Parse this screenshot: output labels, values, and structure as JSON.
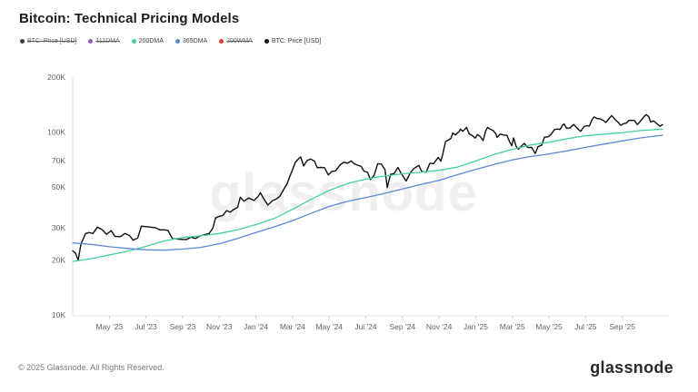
{
  "header": {
    "title": "Bitcoin: Technical Pricing Models"
  },
  "legend": {
    "items": [
      {
        "label": "BTC: Price [USD]",
        "color": "#3c3c3e",
        "disabled": true
      },
      {
        "label": "111DMA",
        "color": "#9b59d0",
        "disabled": true
      },
      {
        "label": "200DMA",
        "color": "#43cfa2",
        "disabled": false
      },
      {
        "label": "365DMA",
        "color": "#5d87d8",
        "disabled": false
      },
      {
        "label": "200WMA",
        "color": "#e03c3c",
        "disabled": true
      },
      {
        "label": "BTC: Price [USD]",
        "color": "#111111",
        "disabled": false
      }
    ]
  },
  "watermark": "glassnode",
  "footer": {
    "copyright": "© 2025 Glassnode. All Rights Reserved.",
    "brand": "glassnode"
  },
  "chart_data": {
    "type": "line",
    "title": "Bitcoin: Technical Pricing Models",
    "y_scale": "log",
    "value_unit": "USD thousands",
    "ylim": [
      10,
      200
    ],
    "y_ticks": [
      {
        "label": "200K",
        "value": 200
      },
      {
        "label": "100K",
        "value": 100
      },
      {
        "label": "70K",
        "value": 70
      },
      {
        "label": "50K",
        "value": 50
      },
      {
        "label": "30K",
        "value": 30
      },
      {
        "label": "20K",
        "value": 20
      },
      {
        "label": "10K",
        "value": 10
      }
    ],
    "x_domain": [
      0,
      32.2
    ],
    "x_epoch": "t = months since Mar 2023",
    "x_ticks": [
      {
        "label": "May '23",
        "t": 2
      },
      {
        "label": "Jul '23",
        "t": 4
      },
      {
        "label": "Sep '23",
        "t": 6
      },
      {
        "label": "Nov '23",
        "t": 8
      },
      {
        "label": "Jan '24",
        "t": 10
      },
      {
        "label": "Mar '24",
        "t": 12
      },
      {
        "label": "May '24",
        "t": 14
      },
      {
        "label": "Jul '24",
        "t": 16
      },
      {
        "label": "Sep '24",
        "t": 18
      },
      {
        "label": "Nov '24",
        "t": 20
      },
      {
        "label": "Jan '25",
        "t": 22
      },
      {
        "label": "Mar '25",
        "t": 24
      },
      {
        "label": "May '25",
        "t": 26
      },
      {
        "label": "Jul '25",
        "t": 28
      },
      {
        "label": "Sep '25",
        "t": 30
      }
    ],
    "series": [
      {
        "name": "BTC: Price [USD]",
        "color": "#101010",
        "width": 1.4,
        "points": [
          [
            0,
            22.4
          ],
          [
            0.15,
            21.8
          ],
          [
            0.3,
            19.9
          ],
          [
            0.45,
            24.4
          ],
          [
            0.7,
            27.9
          ],
          [
            0.9,
            28.2
          ],
          [
            1.1,
            27.9
          ],
          [
            1.35,
            30.2
          ],
          [
            1.6,
            29.3
          ],
          [
            1.85,
            27.6
          ],
          [
            2.1,
            28.9
          ],
          [
            2.3,
            26.9
          ],
          [
            2.6,
            26.8
          ],
          [
            2.85,
            27.9
          ],
          [
            3.1,
            27.2
          ],
          [
            3.3,
            25.6
          ],
          [
            3.55,
            26.4
          ],
          [
            3.75,
            30.6
          ],
          [
            4,
            30.4
          ],
          [
            4.25,
            30.2
          ],
          [
            4.5,
            30.0
          ],
          [
            4.75,
            29.2
          ],
          [
            5,
            29.2
          ],
          [
            5.2,
            29.0
          ],
          [
            5.45,
            26.1
          ],
          [
            5.7,
            26.0
          ],
          [
            5.95,
            25.9
          ],
          [
            6.2,
            25.8
          ],
          [
            6.45,
            26.6
          ],
          [
            6.7,
            26.2
          ],
          [
            6.95,
            27.0
          ],
          [
            7.2,
            27.5
          ],
          [
            7.45,
            27.9
          ],
          [
            7.65,
            29.9
          ],
          [
            7.8,
            33.9
          ],
          [
            8,
            34.6
          ],
          [
            8.2,
            35.0
          ],
          [
            8.4,
            37.2
          ],
          [
            8.6,
            36.5
          ],
          [
            8.8,
            37.8
          ],
          [
            9,
            38.7
          ],
          [
            9.15,
            44.0
          ],
          [
            9.35,
            41.9
          ],
          [
            9.6,
            43.6
          ],
          [
            9.9,
            42.3
          ],
          [
            10.1,
            44.2
          ],
          [
            10.25,
            46.6
          ],
          [
            10.45,
            42.8
          ],
          [
            10.65,
            39.9
          ],
          [
            10.9,
            42.1
          ],
          [
            11.1,
            43.0
          ],
          [
            11.3,
            44.5
          ],
          [
            11.5,
            48.2
          ],
          [
            11.7,
            52.0
          ],
          [
            11.85,
            57.1
          ],
          [
            12,
            62.4
          ],
          [
            12.15,
            68.3
          ],
          [
            12.35,
            71.8
          ],
          [
            12.45,
            73.1
          ],
          [
            12.6,
            65.3
          ],
          [
            12.8,
            70.0
          ],
          [
            13,
            71.2
          ],
          [
            13.2,
            69.4
          ],
          [
            13.35,
            63.9
          ],
          [
            13.55,
            64.1
          ],
          [
            13.75,
            63.9
          ],
          [
            13.95,
            58.3
          ],
          [
            14.15,
            61.0
          ],
          [
            14.35,
            61.4
          ],
          [
            14.6,
            66.2
          ],
          [
            14.8,
            68.5
          ],
          [
            15,
            67.6
          ],
          [
            15.2,
            69.5
          ],
          [
            15.35,
            67.3
          ],
          [
            15.55,
            66.0
          ],
          [
            15.75,
            64.9
          ],
          [
            15.9,
            61.2
          ],
          [
            16.1,
            60.2
          ],
          [
            16.25,
            55.0
          ],
          [
            16.45,
            58.0
          ],
          [
            16.65,
            67.2
          ],
          [
            16.85,
            66.9
          ],
          [
            17.05,
            62.3
          ],
          [
            17.17,
            49.8
          ],
          [
            17.35,
            58.7
          ],
          [
            17.55,
            59.4
          ],
          [
            17.75,
            64.1
          ],
          [
            17.95,
            59.0
          ],
          [
            18.2,
            54.0
          ],
          [
            18.45,
            60.4
          ],
          [
            18.65,
            63.5
          ],
          [
            18.9,
            65.7
          ],
          [
            19.05,
            60.8
          ],
          [
            19.3,
            60.4
          ],
          [
            19.5,
            67.6
          ],
          [
            19.7,
            67.3
          ],
          [
            19.95,
            72.7
          ],
          [
            20.1,
            69.4
          ],
          [
            20.2,
            75.6
          ],
          [
            20.35,
            88.7
          ],
          [
            20.5,
            90.6
          ],
          [
            20.65,
            92.5
          ],
          [
            20.75,
            99.0
          ],
          [
            20.9,
            96.4
          ],
          [
            21.1,
            101.0
          ],
          [
            21.17,
            103.9
          ],
          [
            21.3,
            101.1
          ],
          [
            21.5,
            106.1
          ],
          [
            21.65,
            97.5
          ],
          [
            21.85,
            95.2
          ],
          [
            21.97,
            92.7
          ],
          [
            22.1,
            97.0
          ],
          [
            22.25,
            94.5
          ],
          [
            22.4,
            89.8
          ],
          [
            22.55,
            102.0
          ],
          [
            22.65,
            106.2
          ],
          [
            22.8,
            103.7
          ],
          [
            22.95,
            102.1
          ],
          [
            23.1,
            97.8
          ],
          [
            23.17,
            93.6
          ],
          [
            23.35,
            97.5
          ],
          [
            23.55,
            96.3
          ],
          [
            23.7,
            96.1
          ],
          [
            23.85,
            88.6
          ],
          [
            23.97,
            84.3
          ],
          [
            24.07,
            93.0
          ],
          [
            24.2,
            83.9
          ],
          [
            24.33,
            80.7
          ],
          [
            24.5,
            84.0
          ],
          [
            24.65,
            86.8
          ],
          [
            24.85,
            82.4
          ],
          [
            25.05,
            82.5
          ],
          [
            25.25,
            76.4
          ],
          [
            25.4,
            83.2
          ],
          [
            25.6,
            84.8
          ],
          [
            25.75,
            93.8
          ],
          [
            25.95,
            94.3
          ],
          [
            26.1,
            97.0
          ],
          [
            26.3,
            103.3
          ],
          [
            26.45,
            104.0
          ],
          [
            26.6,
            103.4
          ],
          [
            26.75,
            109.5
          ],
          [
            26.82,
            111.0
          ],
          [
            26.97,
            104.7
          ],
          [
            27.15,
            105.7
          ],
          [
            27.35,
            110.2
          ],
          [
            27.55,
            104.9
          ],
          [
            27.72,
            100.9
          ],
          [
            27.92,
            107.3
          ],
          [
            28.07,
            108.3
          ],
          [
            28.2,
            108.0
          ],
          [
            28.37,
            117.9
          ],
          [
            28.47,
            121.0
          ],
          [
            28.62,
            118.7
          ],
          [
            28.8,
            118.0
          ],
          [
            28.97,
            115.8
          ],
          [
            29.1,
            112.9
          ],
          [
            29.27,
            118.2
          ],
          [
            29.42,
            123.3
          ],
          [
            29.6,
            117.4
          ],
          [
            29.77,
            113.4
          ],
          [
            29.92,
            108.8
          ],
          [
            30.07,
            111.2
          ],
          [
            30.22,
            112.1
          ],
          [
            30.37,
            115.9
          ],
          [
            30.52,
            116.1
          ],
          [
            30.67,
            115.7
          ],
          [
            30.82,
            109.8
          ],
          [
            30.97,
            114.1
          ],
          [
            31.15,
            120.4
          ],
          [
            31.3,
            124.9
          ],
          [
            31.45,
            121.5
          ],
          [
            31.55,
            113.5
          ],
          [
            31.7,
            115.2
          ],
          [
            31.9,
            111.0
          ],
          [
            32.05,
            107.8
          ],
          [
            32.2,
            109.8
          ]
        ]
      },
      {
        "name": "200DMA",
        "color": "#43cfa2",
        "width": 1.3,
        "points": [
          [
            0,
            19.6
          ],
          [
            1,
            20.3
          ],
          [
            2,
            21.3
          ],
          [
            3,
            22.3
          ],
          [
            4,
            23.7
          ],
          [
            5,
            25.4
          ],
          [
            6,
            26.5
          ],
          [
            7,
            27.1
          ],
          [
            8,
            27.9
          ],
          [
            9,
            29.2
          ],
          [
            10,
            31.2
          ],
          [
            11,
            33.7
          ],
          [
            12,
            37.8
          ],
          [
            13,
            42.8
          ],
          [
            14,
            48.0
          ],
          [
            15,
            52.3
          ],
          [
            16,
            55.3
          ],
          [
            17,
            57.5
          ],
          [
            18,
            59.2
          ],
          [
            19,
            60.3
          ],
          [
            20,
            61.8
          ],
          [
            21,
            64.3
          ],
          [
            22,
            69.5
          ],
          [
            23,
            75.5
          ],
          [
            24,
            80.5
          ],
          [
            25,
            85.0
          ],
          [
            26,
            88.0
          ],
          [
            27,
            92.0
          ],
          [
            28,
            95.5
          ],
          [
            29,
            97.5
          ],
          [
            30,
            99.5
          ],
          [
            31,
            102.0
          ],
          [
            32.2,
            103.8
          ]
        ]
      },
      {
        "name": "365DMA",
        "color": "#5d87d8",
        "width": 1.3,
        "points": [
          [
            0,
            24.8
          ],
          [
            1,
            24.3
          ],
          [
            2,
            23.6
          ],
          [
            3,
            23.1
          ],
          [
            4,
            22.7
          ],
          [
            5,
            22.6
          ],
          [
            6,
            22.9
          ],
          [
            7,
            23.4
          ],
          [
            8,
            24.5
          ],
          [
            9,
            26.2
          ],
          [
            10,
            28.2
          ],
          [
            11,
            30.3
          ],
          [
            12,
            32.8
          ],
          [
            13,
            35.9
          ],
          [
            14,
            39.2
          ],
          [
            15,
            41.8
          ],
          [
            16,
            43.8
          ],
          [
            17,
            46.2
          ],
          [
            18,
            48.9
          ],
          [
            19,
            51.7
          ],
          [
            20,
            54.5
          ],
          [
            21,
            58.5
          ],
          [
            22,
            62.5
          ],
          [
            23,
            66.5
          ],
          [
            24,
            70.5
          ],
          [
            25,
            73.5
          ],
          [
            26,
            76.0
          ],
          [
            27,
            79.0
          ],
          [
            28,
            82.5
          ],
          [
            29,
            86.0
          ],
          [
            30,
            89.5
          ],
          [
            31,
            93.0
          ],
          [
            32.2,
            96.2
          ]
        ]
      }
    ],
    "legend_position": "top-left",
    "grid": false
  }
}
